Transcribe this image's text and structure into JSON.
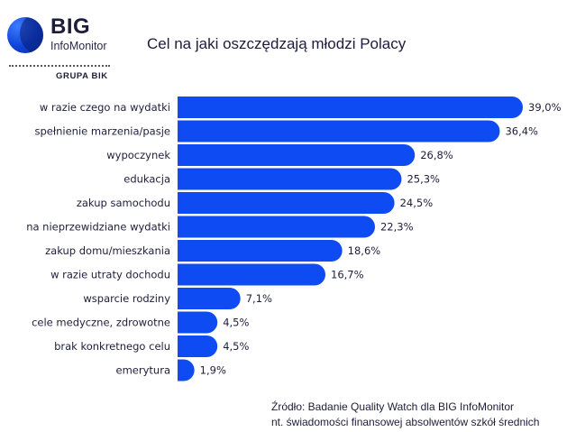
{
  "logo": {
    "brand": "BIG",
    "sub": "InfoMonitor",
    "group": "GRUPA BIK"
  },
  "colors": {
    "bar": "#0f4bf2",
    "text": "#1e1e3c"
  },
  "source": {
    "line1": "Źródło: Badanie Quality Watch dla BIG InfoMonitor",
    "line2": "nt. świadomości finansowej absolwentów szkół średnich"
  },
  "chart_data": {
    "type": "bar",
    "orientation": "horizontal",
    "title": "Cel na jaki oszczędzają młodzi Polacy",
    "xlabel": "",
    "ylabel": "",
    "xlim": [
      0,
      40
    ],
    "grid": false,
    "categories": [
      "w razie czego na wydatki",
      "spełnienie marzenia/pasje",
      "wypoczynek",
      "edukacja",
      "zakup samochodu",
      "na nieprzewidziane wydatki",
      "zakup domu/mieszkania",
      "w razie utraty dochodu",
      "wsparcie rodziny",
      "cele medyczne, zdrowotne",
      "brak konkretnego celu",
      "emerytura"
    ],
    "values": [
      39.0,
      36.4,
      26.8,
      25.3,
      24.5,
      22.3,
      18.6,
      16.7,
      7.1,
      4.5,
      4.5,
      1.9
    ],
    "value_labels": [
      "39,0%",
      "36,4%",
      "26,8%",
      "25,3%",
      "24,5%",
      "22,3%",
      "18,6%",
      "16,7%",
      "7,1%",
      "4,5%",
      "4,5%",
      "1,9%"
    ]
  }
}
